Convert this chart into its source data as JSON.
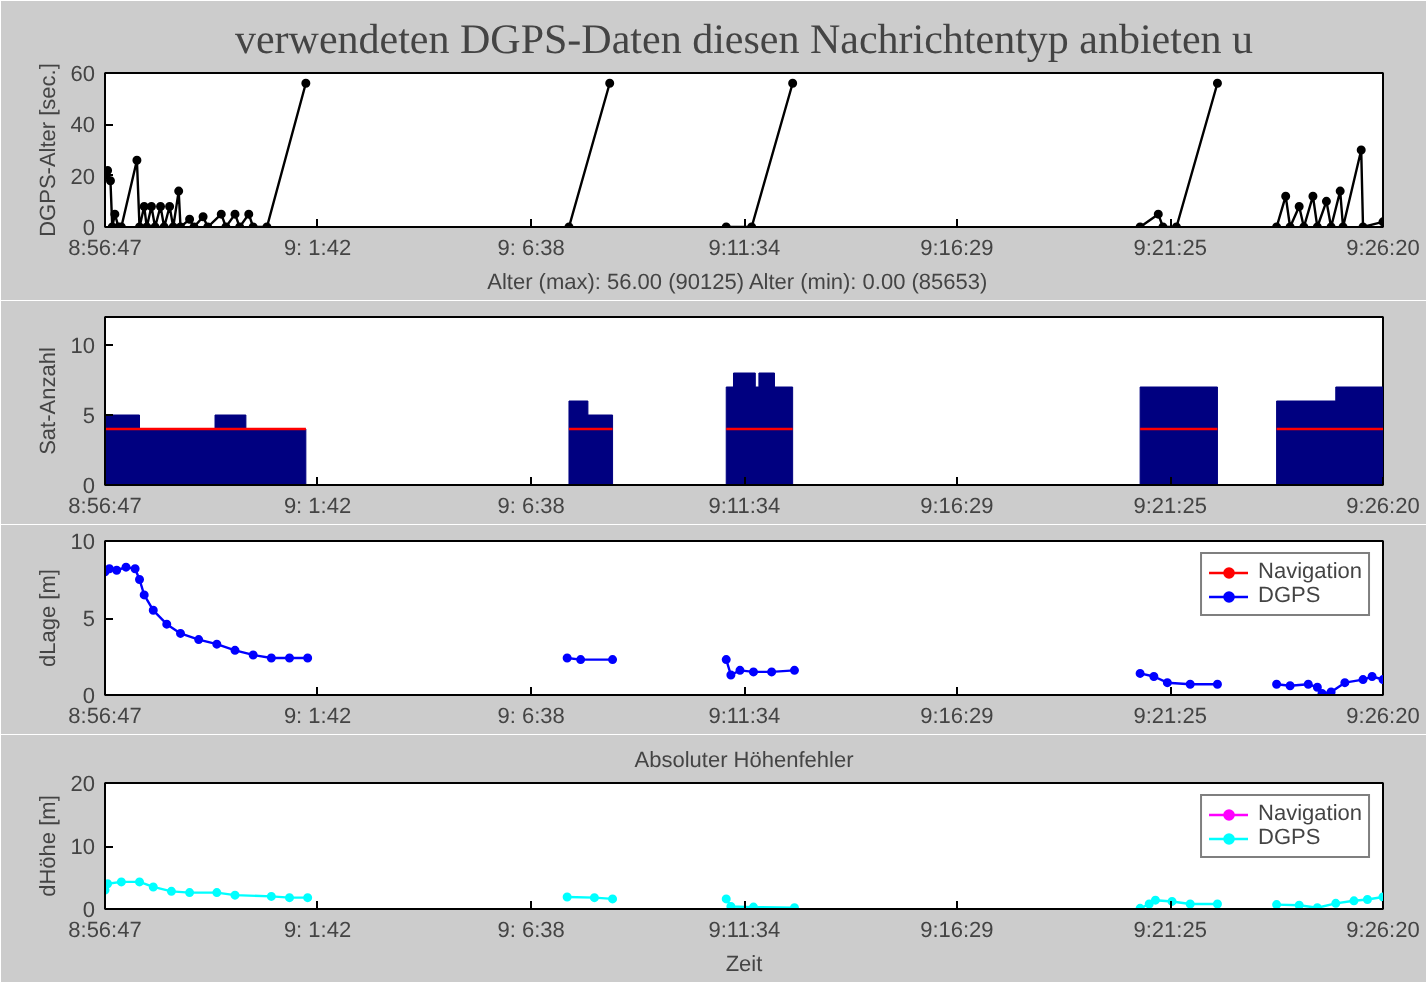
{
  "chart_data": [
    {
      "type": "line",
      "title": "verwendeten DGPS-Daten diesen Nachrichtentyp anbieten u",
      "xlabel": "Alter (max): 56.00 (90125)   Alter (min): 0.00 (85653)",
      "ylabel": "DGPS-Alter [sec.]",
      "marker": "circle",
      "xlim": [
        8.9464,
        9.4389
      ],
      "xticks": [
        {
          "value": 8.9464,
          "label": "8:56:47"
        },
        {
          "value": 9.0283,
          "label": "9: 1:42"
        },
        {
          "value": 9.1106,
          "label": "9: 6:38"
        },
        {
          "value": 9.1928,
          "label": "9:11:34"
        },
        {
          "value": 9.2747,
          "label": "9:16:29"
        },
        {
          "value": 9.3569,
          "label": "9:21:25"
        },
        {
          "value": 9.4389,
          "label": "9:26:20"
        }
      ],
      "ylim": [
        0,
        60
      ],
      "yticks": [
        0,
        20,
        40,
        60
      ],
      "series": [
        {
          "color": "#000000",
          "x": [
            8.9464,
            8.9474,
            8.9485,
            8.9492,
            8.9502,
            8.9516,
            8.9527,
            8.9587,
            8.9597,
            8.9615,
            8.9625,
            8.9643,
            8.9657,
            8.9678,
            8.9692,
            8.9713,
            8.9727,
            8.9748,
            8.9755,
            8.979,
            8.9807,
            8.9842,
            8.986,
            8.9912,
            8.993,
            8.9965,
            8.9983,
            9.0018,
            9.0035,
            9.0088,
            9.0238,
            9.0736,
            9.1252,
            9.1409,
            9.1648,
            9.1858,
            9.1956,
            9.2114,
            9.2769,
            9.3453,
            9.3523,
            9.3541,
            9.3593,
            9.3751,
            9.3856,
            9.3979,
            9.4014,
            9.4031,
            9.4066,
            9.4084,
            9.4119,
            9.4136,
            9.4171,
            9.4189,
            9.4224,
            9.4235,
            9.4305,
            9.4312,
            9.4389
          ],
          "values": [
            20,
            22,
            18,
            0,
            5,
            0,
            0,
            26,
            0,
            8,
            0,
            8,
            0,
            8,
            0,
            8,
            0,
            14,
            0,
            3,
            0,
            4,
            0,
            5,
            0,
            5,
            0,
            5,
            0,
            0,
            56,
            null,
            0,
            56,
            null,
            0,
            0,
            56,
            null,
            0,
            5,
            0,
            0,
            56,
            null,
            0,
            12,
            0,
            8,
            0,
            12,
            0,
            10,
            0,
            14,
            0,
            30,
            0,
            2
          ]
        }
      ]
    },
    {
      "type": "area",
      "ylabel": "Sat-Anzahl",
      "xlim": [
        8.9464,
        9.4389
      ],
      "xticks": [
        {
          "value": 8.9464,
          "label": "8:56:47"
        },
        {
          "value": 9.0283,
          "label": "9: 1:42"
        },
        {
          "value": 9.1106,
          "label": "9: 6:38"
        },
        {
          "value": 9.1928,
          "label": "9:11:34"
        },
        {
          "value": 9.2747,
          "label": "9:16:29"
        },
        {
          "value": 9.3569,
          "label": "9:21:25"
        },
        {
          "value": 9.4389,
          "label": "9:26:20"
        }
      ],
      "ylim": [
        0,
        12
      ],
      "yticks": [
        0,
        5,
        10
      ],
      "series": [
        {
          "color": "#000080",
          "x": [
            8.9464,
            8.9597,
            8.9597,
            8.9888,
            8.9888,
            9.0007,
            9.0007,
            9.0238,
            9.0736,
            9.1252,
            9.1325,
            9.1325,
            9.142,
            9.1648,
            9.1858,
            9.1886,
            9.1886,
            9.197,
            9.197,
            9.1984,
            9.1984,
            9.2044,
            9.2044,
            9.2114,
            9.2769,
            9.3453,
            9.3751,
            9.3856,
            9.3979,
            9.4207,
            9.4207,
            9.4389
          ],
          "values": [
            5,
            5,
            4,
            4,
            5,
            5,
            4,
            4,
            null,
            6,
            6,
            5,
            5,
            null,
            7,
            7,
            8,
            8,
            7,
            7,
            8,
            8,
            7,
            7,
            null,
            7,
            7,
            null,
            6,
            6,
            7,
            7
          ]
        },
        {
          "type": "line",
          "color": "#ff0000",
          "x": [
            8.9464,
            9.0238,
            9.0736,
            9.1252,
            9.142,
            9.1648,
            9.1858,
            9.2114,
            9.2769,
            9.3453,
            9.3751,
            9.3856,
            9.3979,
            9.4389
          ],
          "values": [
            4,
            4,
            null,
            4,
            4,
            null,
            4,
            4,
            null,
            4,
            4,
            null,
            4,
            4
          ]
        }
      ]
    },
    {
      "type": "line",
      "ylabel": "dLage [m]",
      "marker": "circle",
      "legend": "top right",
      "xlim": [
        8.9464,
        9.4389
      ],
      "xticks": [
        {
          "value": 8.9464,
          "label": "8:56:47"
        },
        {
          "value": 9.0283,
          "label": "9: 1:42"
        },
        {
          "value": 9.1106,
          "label": "9: 6:38"
        },
        {
          "value": 9.1928,
          "label": "9:11:34"
        },
        {
          "value": 9.2747,
          "label": "9:16:29"
        },
        {
          "value": 9.3569,
          "label": "9:21:25"
        },
        {
          "value": 9.4389,
          "label": "9:26:20"
        }
      ],
      "ylim": [
        0,
        10
      ],
      "yticks": [
        0,
        5,
        10
      ],
      "series": [
        {
          "name": "Navigation",
          "color": "#ff0000"
        },
        {
          "name": "DGPS",
          "color": "#0000ff",
          "x": [
            8.9464,
            8.9481,
            8.9509,
            8.9545,
            8.958,
            8.9597,
            8.9615,
            8.965,
            8.9702,
            8.9755,
            8.9825,
            8.9895,
            8.9965,
            9.0035,
            9.0105,
            9.0175,
            9.0245,
            9.0736,
            9.1245,
            9.1297,
            9.142,
            9.1648,
            9.1858,
            9.1876,
            9.1911,
            9.1963,
            9.2033,
            9.2121,
            9.2769,
            9.3453,
            9.3506,
            9.3558,
            9.3646,
            9.3751,
            9.3856,
            9.3979,
            9.4031,
            9.4101,
            9.4136,
            9.4154,
            9.4189,
            9.4242,
            9.4312,
            9.4347,
            9.4389
          ],
          "values": [
            8.0,
            8.2,
            8.1,
            8.3,
            8.2,
            7.5,
            6.5,
            5.5,
            4.6,
            4.0,
            3.6,
            3.3,
            2.9,
            2.6,
            2.4,
            2.4,
            2.4,
            null,
            2.4,
            2.3,
            2.3,
            null,
            2.3,
            1.3,
            1.6,
            1.5,
            1.5,
            1.6,
            null,
            1.4,
            1.2,
            0.8,
            0.7,
            0.7,
            null,
            0.7,
            0.6,
            0.7,
            0.5,
            0.1,
            0.2,
            0.8,
            1.0,
            1.2,
            1.0
          ]
        }
      ]
    },
    {
      "type": "line",
      "title": "Absoluter Höhenfehler",
      "xlabel": "Zeit",
      "ylabel": "dHöhe [m]",
      "marker": "circle",
      "legend": "top right",
      "xlim": [
        8.9464,
        9.4389
      ],
      "xticks": [
        {
          "value": 8.9464,
          "label": "8:56:47"
        },
        {
          "value": 9.0283,
          "label": "9: 1:42"
        },
        {
          "value": 9.1106,
          "label": "9: 6:38"
        },
        {
          "value": 9.1928,
          "label": "9:11:34"
        },
        {
          "value": 9.2747,
          "label": "9:16:29"
        },
        {
          "value": 9.3569,
          "label": "9:21:25"
        },
        {
          "value": 9.4389,
          "label": "9:26:20"
        }
      ],
      "ylim": [
        0,
        20
      ],
      "yticks": [
        0,
        10,
        20
      ],
      "series": [
        {
          "name": "Navigation",
          "color": "#ff00ff"
        },
        {
          "name": "DGPS",
          "color": "#00ffff",
          "x": [
            8.9464,
            8.9474,
            8.9527,
            8.9597,
            8.965,
            8.972,
            8.979,
            8.9895,
            8.9965,
            9.0105,
            9.0175,
            9.0245,
            9.0736,
            9.1245,
            9.135,
            9.142,
            9.1648,
            9.1858,
            9.1876,
            9.1963,
            9.2121,
            9.2769,
            9.3453,
            9.3488,
            9.3512,
            9.3576,
            9.3646,
            9.3751,
            9.3856,
            9.3979,
            9.4066,
            9.4136,
            9.4207,
            9.4277,
            9.4329,
            9.4389
          ],
          "values": [
            3.0,
            4.0,
            4.3,
            4.3,
            3.5,
            2.8,
            2.6,
            2.6,
            2.2,
            2.0,
            1.8,
            1.8,
            null,
            1.9,
            1.8,
            1.6,
            null,
            1.6,
            0.4,
            0.3,
            0.2,
            null,
            0.1,
            0.8,
            1.4,
            1.2,
            0.8,
            0.8,
            null,
            0.7,
            0.6,
            0.2,
            0.9,
            1.3,
            1.5,
            1.9
          ]
        }
      ]
    }
  ]
}
